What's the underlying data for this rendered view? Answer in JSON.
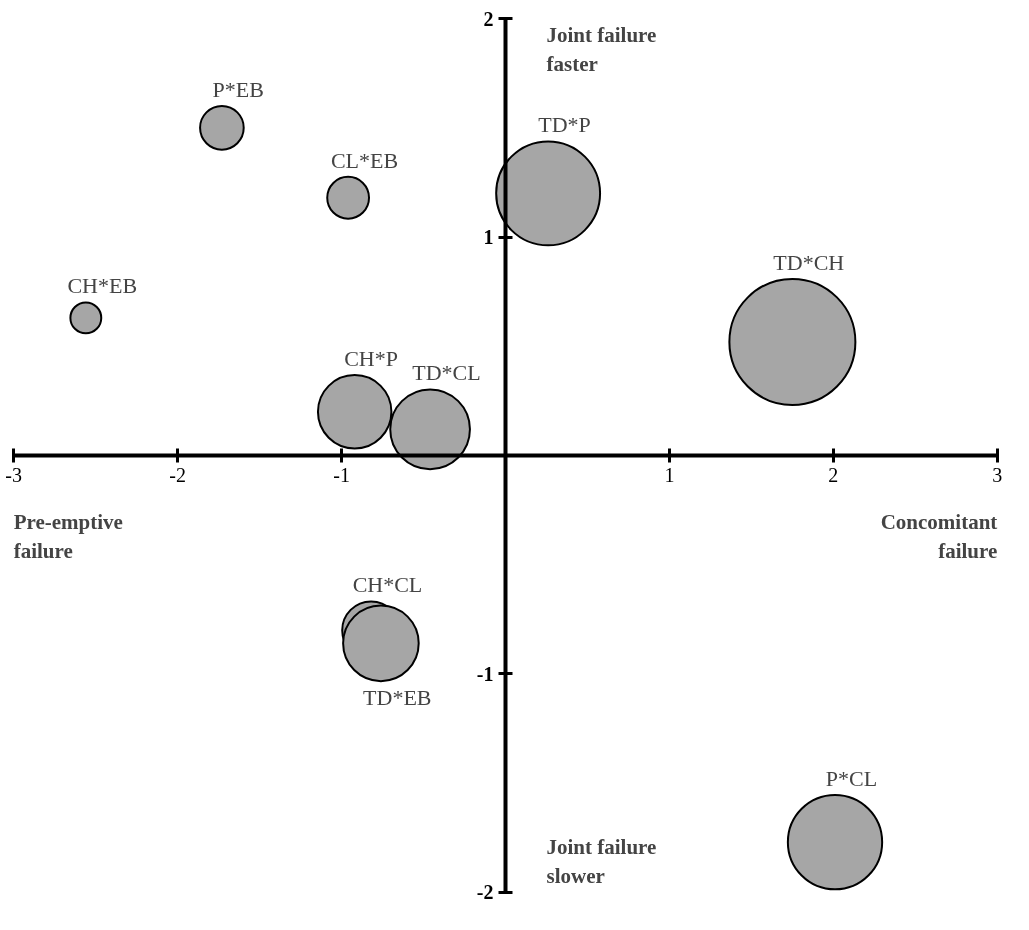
{
  "chart_data": {
    "type": "bubble",
    "xlim": [
      -3,
      3
    ],
    "ylim": [
      -2,
      2
    ],
    "xticks": [
      -3,
      -2,
      -1,
      1,
      2,
      3
    ],
    "yticks": [
      -2,
      -1,
      1,
      2
    ],
    "grid": false,
    "legend": false,
    "annotations": [
      "Joint failure faster",
      "Joint failure slower",
      "Pre-emptive failure",
      "Concomitant failure"
    ],
    "series": [
      {
        "name": "P*EB",
        "color": "#a6a6a6",
        "x": [
          -1.73
        ],
        "values": [
          1.5
        ],
        "sizes": [
          0.12
        ]
      },
      {
        "name": "CL*EB",
        "color": "#a6a6a6",
        "x": [
          -0.96
        ],
        "values": [
          1.18
        ],
        "sizes": [
          0.11
        ]
      },
      {
        "name": "CH*EB",
        "color": "#a6a6a6",
        "x": [
          -2.56
        ],
        "values": [
          0.63
        ],
        "sizes": [
          0.06
        ]
      },
      {
        "name": "TD*P",
        "color": "#a6a6a6",
        "x": [
          0.26
        ],
        "values": [
          1.2
        ],
        "sizes": [
          0.68
        ]
      },
      {
        "name": "TD*CH",
        "color": "#a6a6a6",
        "x": [
          1.75
        ],
        "values": [
          0.52
        ],
        "sizes": [
          1
        ]
      },
      {
        "name": "CH*P",
        "color": "#a6a6a6",
        "x": [
          -0.92
        ],
        "values": [
          0.2
        ],
        "sizes": [
          0.34
        ]
      },
      {
        "name": "TD*CL",
        "color": "#a6a6a6",
        "x": [
          -0.46
        ],
        "values": [
          0.12
        ],
        "sizes": [
          0.4
        ]
      },
      {
        "name": "CH*CL",
        "color": "#a6a6a6",
        "x": [
          -0.82
        ],
        "values": [
          -0.8
        ],
        "sizes": [
          0.21
        ]
      },
      {
        "name": "TD*EB",
        "color": "#a6a6a6",
        "x": [
          -0.76
        ],
        "values": [
          -0.86
        ],
        "sizes": [
          0.36
        ]
      },
      {
        "name": "P*CL",
        "color": "#a6a6a6",
        "x": [
          2.01
        ],
        "values": [
          -1.77
        ],
        "sizes": [
          0.56
        ]
      }
    ]
  }
}
